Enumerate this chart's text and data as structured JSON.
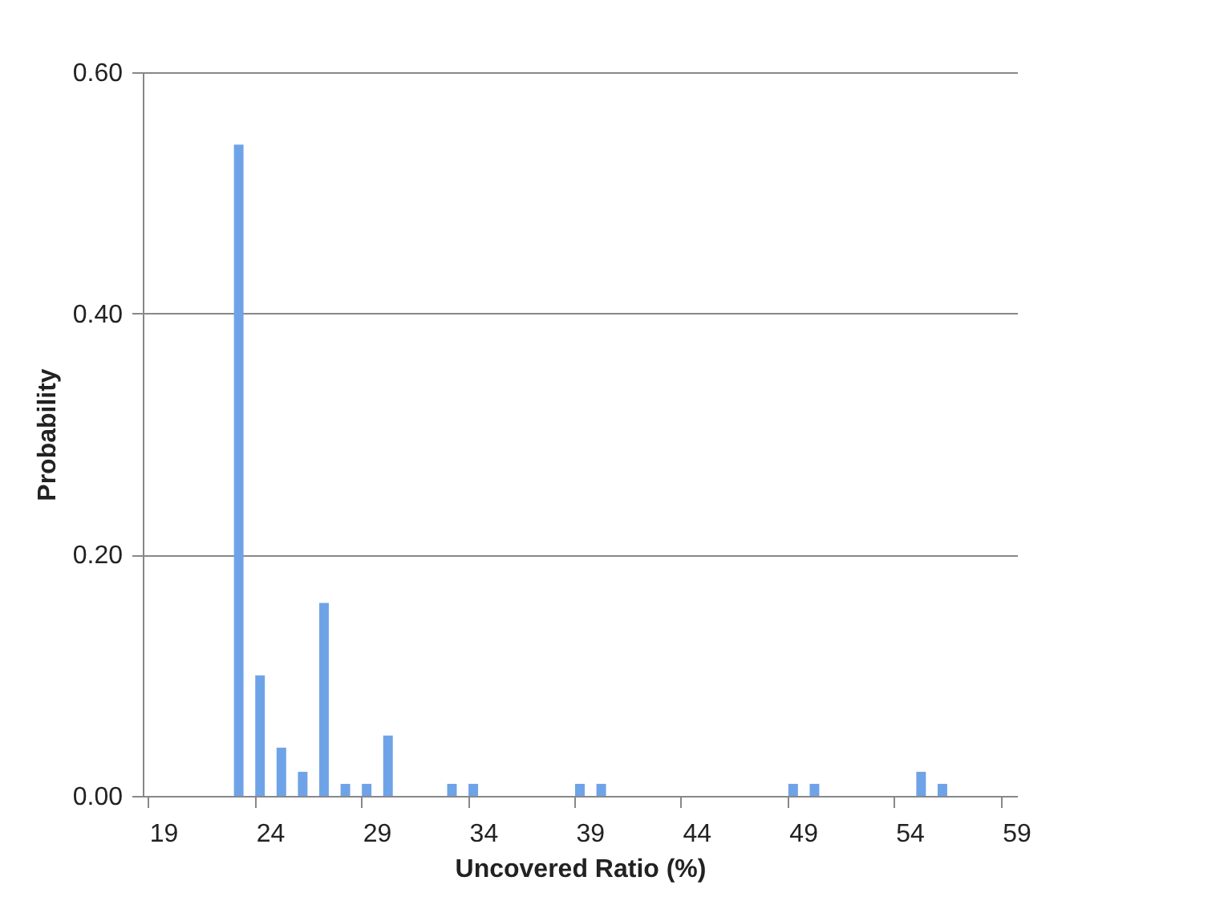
{
  "chart_data": {
    "type": "bar",
    "xlabel": "Uncovered Ratio (%)",
    "ylabel": "Probability",
    "categories": [
      "19",
      null,
      null,
      null,
      null,
      "24",
      null,
      null,
      null,
      null,
      "29",
      null,
      null,
      null,
      null,
      "34",
      null,
      null,
      null,
      null,
      "39",
      null,
      null,
      null,
      null,
      "44",
      null,
      null,
      null,
      null,
      "49",
      null,
      null,
      null,
      null,
      "54",
      null,
      null,
      null,
      null,
      "59"
    ],
    "values": [
      0,
      0,
      0,
      0,
      0.54,
      0.1,
      0.04,
      0.02,
      0.16,
      0.01,
      0.01,
      0.05,
      0,
      0,
      0.01,
      0.01,
      0,
      0,
      0,
      0,
      0.01,
      0.01,
      0,
      0,
      0,
      0,
      0,
      0,
      0,
      0,
      0.01,
      0.01,
      0,
      0,
      0,
      0,
      0.02,
      0.01,
      0,
      0,
      0
    ],
    "color": "#6fa3e8",
    "ylim": [
      0,
      0.6
    ],
    "yticks": [
      {
        "value": 0,
        "label": "0.00"
      },
      {
        "value": 0.2,
        "label": "0.20"
      },
      {
        "value": 0.4,
        "label": "0.40"
      },
      {
        "value": 0.6,
        "label": "0.60"
      }
    ],
    "grid": "y"
  }
}
